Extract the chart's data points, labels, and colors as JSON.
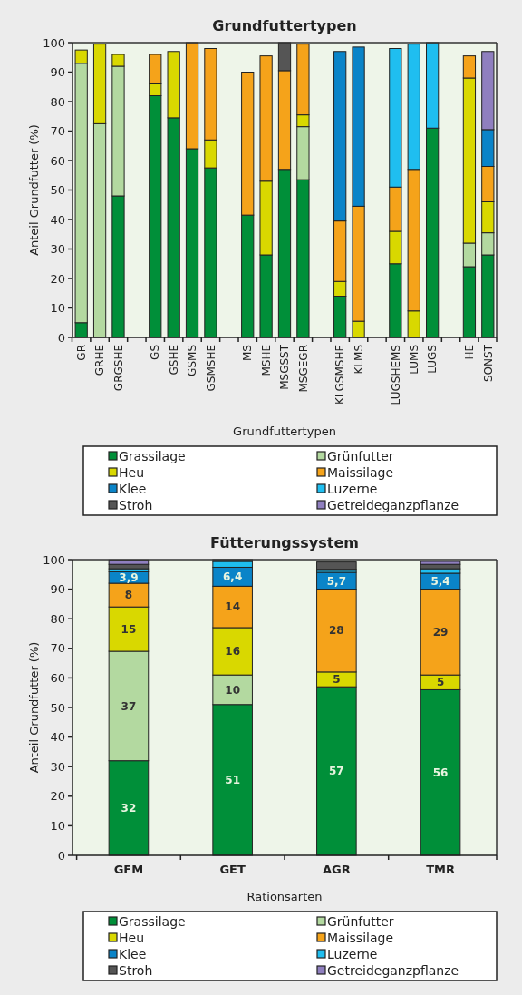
{
  "chart_data": [
    {
      "type": "bar",
      "title": "Grundfuttertypen",
      "xlabel": "Grundfuttertypen",
      "ylabel": "Anteil Grundfutter (%)",
      "stacked": true,
      "legend": "bottom",
      "grid": false,
      "ylim": [
        0,
        100
      ],
      "yticks": [
        0,
        10,
        20,
        30,
        40,
        50,
        60,
        70,
        80,
        90,
        100
      ],
      "categories": [
        "GR",
        "GRHE",
        "GRGSHE",
        null,
        "GS",
        "GSHE",
        "GSMS",
        "GSMSHE",
        null,
        "MS",
        "MSHE",
        "MSGSST",
        "MSGEGR",
        null,
        "KLGSMSHE",
        "KLMS",
        null,
        "LUGSHEMS",
        "LUMS",
        "LUGS",
        null,
        "HE",
        "SONST"
      ],
      "series": [
        {
          "name": "Grassilage",
          "color": "#008f39",
          "values": [
            5,
            0,
            48,
            null,
            82,
            74.5,
            64,
            57.5,
            null,
            41.5,
            28,
            57,
            53.5,
            null,
            14,
            0,
            null,
            25,
            0,
            71,
            null,
            24,
            28
          ]
        },
        {
          "name": "Grünfutter",
          "color": "#b3d9a0",
          "values": [
            88,
            72.5,
            44,
            null,
            0,
            0,
            0,
            0,
            null,
            0,
            0,
            0,
            18,
            null,
            0,
            0,
            null,
            0,
            0,
            0,
            null,
            8,
            7.5
          ]
        },
        {
          "name": "Heu",
          "color": "#d9d800",
          "values": [
            4.5,
            27,
            4,
            null,
            4,
            22.5,
            0,
            9.5,
            null,
            0,
            25,
            0,
            4,
            null,
            5,
            5.5,
            null,
            11,
            9,
            0,
            null,
            56,
            10.5
          ]
        },
        {
          "name": "Maissilage",
          "color": "#f5a31a",
          "values": [
            0,
            0,
            0,
            null,
            10,
            0,
            36,
            31,
            null,
            48.5,
            42.5,
            33.5,
            24,
            null,
            20.5,
            39,
            null,
            15,
            48,
            0,
            null,
            7.5,
            12
          ]
        },
        {
          "name": "Klee",
          "color": "#0a84c8",
          "values": [
            0,
            0,
            0,
            null,
            0,
            0,
            0,
            0,
            null,
            0,
            0,
            0,
            0,
            null,
            57.5,
            54,
            null,
            0,
            0,
            0,
            null,
            0,
            12.5
          ]
        },
        {
          "name": "Luzerne",
          "color": "#1fbef0",
          "values": [
            0,
            0,
            0,
            null,
            0,
            0,
            0,
            0,
            null,
            0,
            0,
            0,
            0,
            null,
            0,
            0,
            null,
            47,
            42.5,
            29,
            null,
            0,
            0
          ]
        },
        {
          "name": "Stroh",
          "color": "#555555",
          "values": [
            0,
            0,
            0,
            null,
            0,
            0,
            0,
            0,
            null,
            0,
            0,
            9.5,
            0,
            null,
            0,
            0,
            null,
            0,
            0,
            0,
            null,
            0,
            0
          ]
        },
        {
          "name": "Getreideganzpflanze",
          "color": "#8f7fbf",
          "values": [
            0,
            0,
            0,
            null,
            0,
            0,
            0,
            0,
            null,
            0,
            0,
            0,
            0,
            null,
            0,
            0,
            null,
            0,
            0,
            0,
            null,
            0,
            26.5
          ]
        }
      ]
    },
    {
      "type": "bar",
      "title": "Fütterungssystem",
      "xlabel": "Rationsarten",
      "ylabel": "Anteil Grundfutter (%)",
      "stacked": true,
      "legend": "bottom",
      "grid": false,
      "ylim": [
        0,
        100
      ],
      "yticks": [
        0,
        10,
        20,
        30,
        40,
        50,
        60,
        70,
        80,
        90,
        100
      ],
      "categories": [
        "GFM",
        "GET",
        "AGR",
        "TMR"
      ],
      "series": [
        {
          "name": "Grassilage",
          "color": "#008f39",
          "values": [
            32,
            51,
            57,
            56
          ],
          "value_labels": [
            "32",
            "51",
            "57",
            "56"
          ]
        },
        {
          "name": "Grünfutter",
          "color": "#b3d9a0",
          "values": [
            37,
            10,
            null,
            null
          ],
          "value_labels": [
            "37",
            "10",
            null,
            null
          ]
        },
        {
          "name": "Heu",
          "color": "#d9d800",
          "values": [
            15,
            16,
            5,
            5
          ],
          "value_labels": [
            "15",
            "16",
            "5",
            "5"
          ]
        },
        {
          "name": "Maissilage",
          "color": "#f5a31a",
          "values": [
            8,
            14,
            28,
            29
          ],
          "value_labels": [
            "8",
            "14",
            "28",
            "29"
          ]
        },
        {
          "name": "Klee",
          "color": "#0a84c8",
          "values": [
            3.9,
            6.4,
            5.7,
            5.4
          ],
          "value_labels": [
            "3,9",
            "6,4",
            "5,7",
            "5,4"
          ]
        },
        {
          "name": "Luzerne",
          "color": "#1fbef0",
          "values": [
            1,
            2,
            1,
            1.5
          ],
          "value_labels": [
            null,
            null,
            null,
            null
          ]
        },
        {
          "name": "Stroh",
          "color": "#555555",
          "values": [
            1.5,
            0.6,
            2.5,
            1.5
          ],
          "value_labels": [
            null,
            null,
            null,
            null
          ]
        },
        {
          "name": "Getreideganzpflanze",
          "color": "#8f7fbf",
          "values": [
            1.5,
            0,
            0,
            1
          ],
          "value_labels": [
            null,
            null,
            null,
            null
          ]
        }
      ]
    }
  ]
}
